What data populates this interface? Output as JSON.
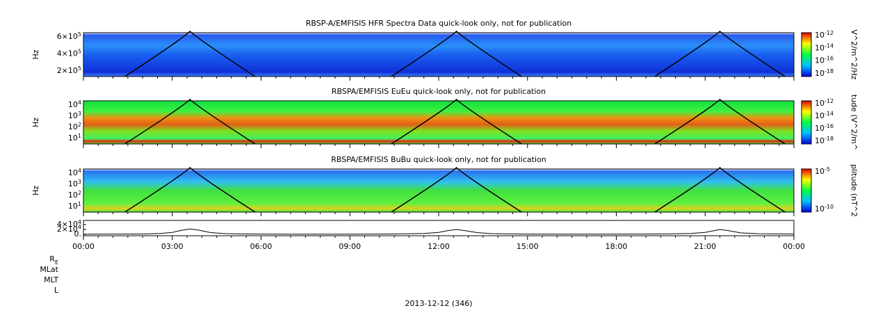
{
  "panels": [
    {
      "title": "RBSP-A/EMFISIS  HFR Spectra Data quick-look only, not for publication",
      "y_label": "Hz",
      "y_ticks": [
        {
          "base": "6×10",
          "exp": "5"
        },
        {
          "base": "4×10",
          "exp": "5"
        },
        {
          "base": "2×10",
          "exp": "5"
        }
      ],
      "colorbar": {
        "label": "V^2/m^2/Hz",
        "ticks": [
          {
            "base": "10",
            "exp": "-12"
          },
          {
            "base": "10",
            "exp": "-14"
          },
          {
            "base": "10",
            "exp": "-16"
          },
          {
            "base": "10",
            "exp": "-18"
          }
        ]
      }
    },
    {
      "title": "RBSPA/EMFISIS  EuEu quick-look only, not for publication",
      "y_label": "Hz",
      "y_ticks": [
        {
          "base": "10",
          "exp": "4"
        },
        {
          "base": "10",
          "exp": "3"
        },
        {
          "base": "10",
          "exp": "2"
        },
        {
          "base": "10",
          "exp": "1"
        }
      ],
      "colorbar": {
        "label": "tude (V^2/m^",
        "ticks": [
          {
            "base": "10",
            "exp": "-12"
          },
          {
            "base": "10",
            "exp": "-14"
          },
          {
            "base": "10",
            "exp": "-16"
          },
          {
            "base": "10",
            "exp": "-18"
          }
        ]
      }
    },
    {
      "title": "RBSPA/EMFISIS  BuBu quick-look only, not for publication",
      "y_label": "Hz",
      "y_ticks": [
        {
          "base": "10",
          "exp": "4"
        },
        {
          "base": "10",
          "exp": "3"
        },
        {
          "base": "10",
          "exp": "2"
        },
        {
          "base": "10",
          "exp": "1"
        }
      ],
      "colorbar": {
        "label": "plitude (nT^2",
        "ticks": [
          {
            "base": "10",
            "exp": "-5"
          },
          {
            "base": "10",
            "exp": "-10"
          }
        ]
      }
    }
  ],
  "line_panel": {
    "ylim": [
      -5700,
      57000
    ],
    "y_ticks": [
      {
        "value": 40000,
        "base": "4×10",
        "exp": "4"
      },
      {
        "value": 20000,
        "base": "2×10",
        "exp": "4"
      },
      {
        "value": 0,
        "label": "0."
      }
    ],
    "x": [
      0,
      1,
      2,
      2.6,
      3,
      3.3,
      3.6,
      3.9,
      4.3,
      4.8,
      5.5,
      7,
      9,
      10.5,
      11.5,
      12,
      12.3,
      12.6,
      12.9,
      13.3,
      13.8,
      15,
      17,
      19.5,
      20.5,
      21,
      21.3,
      21.5,
      21.8,
      22.2,
      22.8,
      24
    ],
    "values": [
      600,
      900,
      1600,
      3500,
      8000,
      16000,
      22000,
      17000,
      7000,
      3000,
      1500,
      700,
      700,
      1500,
      3500,
      8000,
      15000,
      20000,
      15000,
      7000,
      3000,
      1200,
      700,
      1500,
      3500,
      8000,
      15000,
      20000,
      15000,
      6000,
      2500,
      1500
    ]
  },
  "time_axis": {
    "ticks": [
      "00:00",
      "03:00",
      "06:00",
      "09:00",
      "12:00",
      "15:00",
      "18:00",
      "21:00",
      "00:00"
    ],
    "date": "2013-12-12 (346)"
  },
  "ephemeris_labels": [
    {
      "base": "R",
      "sub": "E"
    },
    "MLat",
    "MLT",
    "L"
  ]
}
